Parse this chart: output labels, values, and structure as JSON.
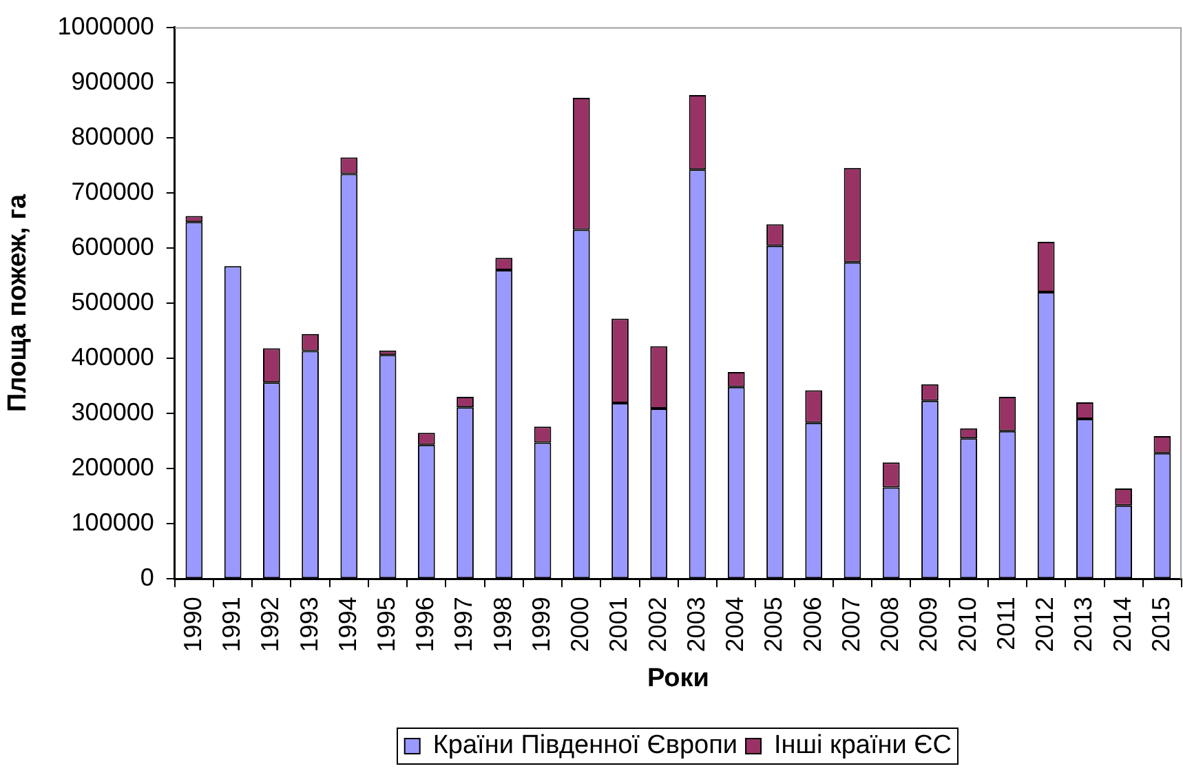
{
  "chart_data": {
    "type": "bar",
    "stacked": true,
    "xlabel": "Роки",
    "ylabel": "Площа пожеж, га",
    "categories": [
      "1990",
      "1991",
      "1992",
      "1993",
      "1994",
      "1995",
      "1996",
      "1997",
      "1998",
      "1999",
      "2000",
      "2001",
      "2002",
      "2003",
      "2004",
      "2005",
      "2006",
      "2007",
      "2008",
      "2009",
      "2010",
      "2011",
      "2012",
      "2013",
      "2014",
      "2015"
    ],
    "series": [
      {
        "name": "Країни Південної Європи",
        "color": "#9999ff",
        "values": [
          647000,
          567000,
          356000,
          413000,
          734000,
          406000,
          243000,
          311000,
          560000,
          247000,
          633000,
          319000,
          309000,
          742000,
          348000,
          604000,
          283000,
          574000,
          166000,
          323000,
          255000,
          268000,
          520000,
          290000,
          133000,
          228000
        ]
      },
      {
        "name": "Інші країни ЄС",
        "color": "#993366",
        "values": [
          11000,
          null,
          62000,
          31000,
          30000,
          8000,
          22000,
          19000,
          22000,
          29000,
          239000,
          153000,
          113000,
          135000,
          27000,
          39000,
          59000,
          171000,
          45000,
          30000,
          18000,
          62000,
          91000,
          30000,
          31000,
          31000
        ]
      }
    ],
    "ylim": [
      0,
      1000000
    ],
    "yticks": [
      0,
      100000,
      200000,
      300000,
      400000,
      500000,
      600000,
      700000,
      800000,
      900000,
      1000000
    ],
    "legend": "bottom"
  }
}
